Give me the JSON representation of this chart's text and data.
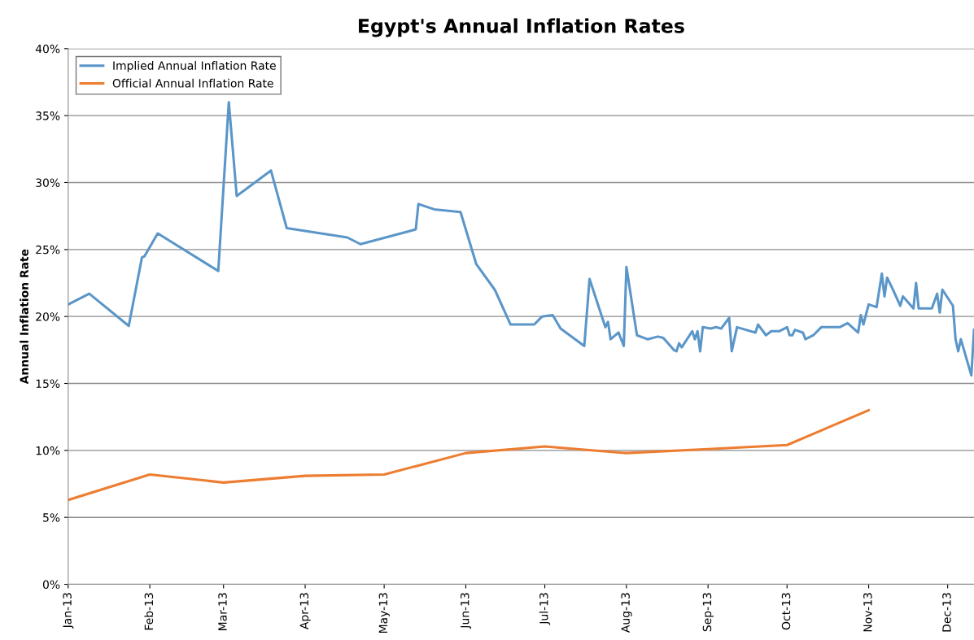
{
  "chart_data": {
    "type": "line",
    "title": "Egypt's Annual Inflation Rates",
    "ylabel": "Annual Inflation Rate",
    "xlim": [
      "2013-01-01",
      "2013-12-11"
    ],
    "xticks": [
      {
        "value": "2013-01-01",
        "label": "Jan-13"
      },
      {
        "value": "2013-02-01",
        "label": "Feb-13"
      },
      {
        "value": "2013-03-01",
        "label": "Mar-13"
      },
      {
        "value": "2013-04-01",
        "label": "Apr-13"
      },
      {
        "value": "2013-05-01",
        "label": "May-13"
      },
      {
        "value": "2013-06-01",
        "label": "Jun-13"
      },
      {
        "value": "2013-07-01",
        "label": "Jul-13"
      },
      {
        "value": "2013-08-01",
        "label": "Aug-13"
      },
      {
        "value": "2013-09-01",
        "label": "Sep-13"
      },
      {
        "value": "2013-10-01",
        "label": "Oct-13"
      },
      {
        "value": "2013-11-01",
        "label": "Nov-13"
      },
      {
        "value": "2013-12-01",
        "label": "Dec-13"
      }
    ],
    "ylim": [
      0,
      40
    ],
    "yticks": [
      {
        "value": 0,
        "label": "0%"
      },
      {
        "value": 5,
        "label": "5%"
      },
      {
        "value": 10,
        "label": "10%"
      },
      {
        "value": 15,
        "label": "15%"
      },
      {
        "value": 20,
        "label": "20%"
      },
      {
        "value": 25,
        "label": "25%"
      },
      {
        "value": 30,
        "label": "30%"
      },
      {
        "value": 35,
        "label": "35%"
      },
      {
        "value": 40,
        "label": "40%"
      }
    ],
    "grid": "y",
    "legend": "top left",
    "marker": "none",
    "line_style": "solid",
    "series": [
      {
        "name": "Implied Annual Inflation Rate",
        "color": "#5b96c9",
        "x": [
          "2013-01-01",
          "2013-01-09",
          "2013-01-24",
          "2013-01-29",
          "2013-01-30",
          "2013-02-04",
          "2013-02-27",
          "2013-03-03",
          "2013-03-06",
          "2013-03-19",
          "2013-03-25",
          "2013-04-17",
          "2013-04-22",
          "2013-05-13",
          "2013-05-14",
          "2013-05-20",
          "2013-05-30",
          "2013-06-05",
          "2013-06-12",
          "2013-06-18",
          "2013-06-27",
          "2013-06-30",
          "2013-07-04",
          "2013-07-07",
          "2013-07-16",
          "2013-07-18",
          "2013-07-24",
          "2013-07-25",
          "2013-07-26",
          "2013-07-29",
          "2013-07-31",
          "2013-08-01",
          "2013-08-05",
          "2013-08-09",
          "2013-08-13",
          "2013-08-15",
          "2013-08-19",
          "2013-08-20",
          "2013-08-21",
          "2013-08-22",
          "2013-08-26",
          "2013-08-27",
          "2013-08-28",
          "2013-08-29",
          "2013-08-30",
          "2013-09-02",
          "2013-09-04",
          "2013-09-06",
          "2013-09-09",
          "2013-09-10",
          "2013-09-12",
          "2013-09-19",
          "2013-09-20",
          "2013-09-23",
          "2013-09-25",
          "2013-09-28",
          "2013-10-01",
          "2013-10-02",
          "2013-10-03",
          "2013-10-04",
          "2013-10-07",
          "2013-10-08",
          "2013-10-11",
          "2013-10-14",
          "2013-10-21",
          "2013-10-24",
          "2013-10-28",
          "2013-10-29",
          "2013-10-30",
          "2013-11-01",
          "2013-11-04",
          "2013-11-06",
          "2013-11-07",
          "2013-11-08",
          "2013-11-10",
          "2013-11-13",
          "2013-11-14",
          "2013-11-18",
          "2013-11-19",
          "2013-11-20",
          "2013-11-25",
          "2013-11-27",
          "2013-11-28",
          "2013-11-29",
          "2013-12-03",
          "2013-12-04",
          "2013-12-05",
          "2013-12-06",
          "2013-12-10",
          "2013-12-11"
        ],
        "values": [
          20.9,
          21.7,
          19.3,
          24.4,
          24.5,
          26.2,
          23.4,
          36,
          29.0,
          30.9,
          26.6,
          25.9,
          25.4,
          26.5,
          28.4,
          28.0,
          27.8,
          23.9,
          22.0,
          19.4,
          19.4,
          20.0,
          20.1,
          19.1,
          17.8,
          22.8,
          19.2,
          19.6,
          18.3,
          18.8,
          17.8,
          23.7,
          18.6,
          18.3,
          18.5,
          18.4,
          17.5,
          17.4,
          18.0,
          17.7,
          18.9,
          18.3,
          18.9,
          17.4,
          19.2,
          19.1,
          19.2,
          19.1,
          19.9,
          17.4,
          19.2,
          18.8,
          19.4,
          18.6,
          18.9,
          18.9,
          19.2,
          18.6,
          18.6,
          19.0,
          18.8,
          18.3,
          18.6,
          19.2,
          19.2,
          19.5,
          18.8,
          20.1,
          19.4,
          20.9,
          20.7,
          23.2,
          21.5,
          22.9,
          22.1,
          20.8,
          21.5,
          20.6,
          22.5,
          20.6,
          20.6,
          21.7,
          20.3,
          22.0,
          20.8,
          18.3,
          17.4,
          18.3,
          15.6,
          19.0
        ]
      },
      {
        "name": "Official Annual Inflation Rate",
        "color": "#ed7d31",
        "x": [
          "2013-01-01",
          "2013-02-01",
          "2013-03-01",
          "2013-04-01",
          "2013-05-01",
          "2013-06-01",
          "2013-07-01",
          "2013-08-01",
          "2013-09-01",
          "2013-10-01",
          "2013-11-01"
        ],
        "values": [
          6.3,
          8.2,
          7.6,
          8.1,
          8.2,
          9.8,
          10.3,
          9.8,
          10.1,
          10.4,
          13.0
        ]
      }
    ]
  }
}
